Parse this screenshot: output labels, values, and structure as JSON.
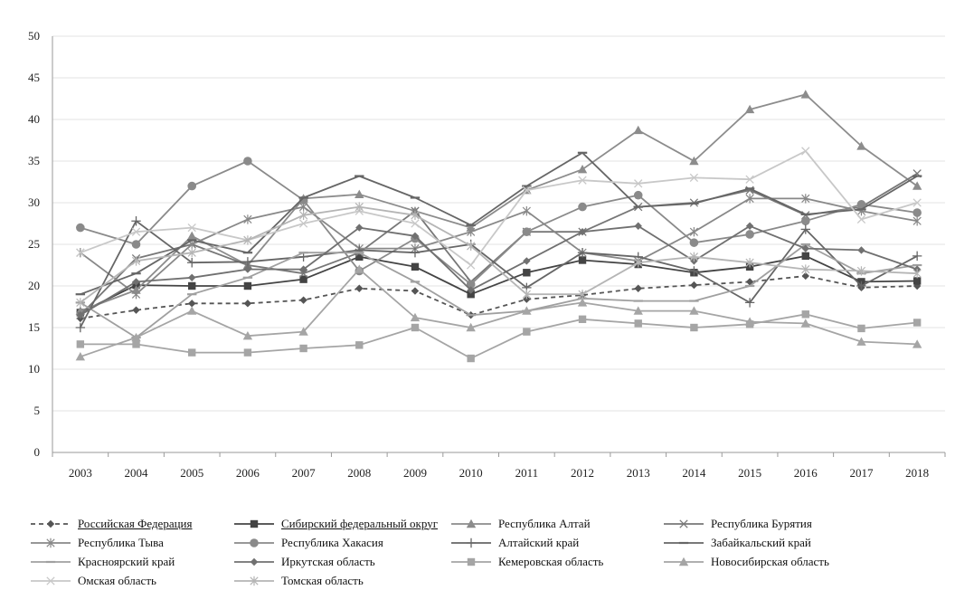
{
  "chart_data": {
    "type": "line",
    "x": [
      "2003",
      "2004",
      "2005",
      "2006",
      "2007",
      "2008",
      "2009",
      "2010",
      "2011",
      "2012",
      "2013",
      "2014",
      "2015",
      "2016",
      "2017",
      "2018"
    ],
    "ylim": [
      0,
      50
    ],
    "yticks": [
      "0",
      "5",
      "10",
      "15",
      "20",
      "25",
      "30",
      "35",
      "40",
      "45",
      "50"
    ],
    "grid": "horizontal",
    "legend_position": "bottom",
    "series": [
      {
        "name": "Российская Федерация",
        "color": "#555555",
        "marker": "diamond",
        "dash": true,
        "underline": true,
        "values": [
          16.1,
          17.1,
          17.9,
          17.9,
          18.3,
          19.7,
          19.4,
          16.5,
          18.4,
          18.9,
          19.7,
          20.1,
          20.5,
          21.2,
          19.8,
          20.0
        ]
      },
      {
        "name": "Сибирский федеральный  округ",
        "color": "#444444",
        "marker": "square",
        "dash": false,
        "underline": true,
        "values": [
          16.8,
          20.1,
          20.0,
          20.0,
          20.8,
          23.5,
          22.3,
          19.0,
          21.6,
          23.1,
          22.6,
          21.6,
          22.3,
          23.6,
          20.5,
          20.6
        ]
      },
      {
        "name": "Республика Алтай",
        "color": "#8c8c8c",
        "marker": "triangle",
        "dash": false,
        "values": [
          17.0,
          19.5,
          26.0,
          22.5,
          30.5,
          31.0,
          29.0,
          27.0,
          31.5,
          34.0,
          38.7,
          35.0,
          41.2,
          43.0,
          36.8,
          32.0
        ]
      },
      {
        "name": "Республика Бурятия",
        "color": "#777777",
        "marker": "x",
        "dash": false,
        "values": [
          16.5,
          23.3,
          25.0,
          22.5,
          21.5,
          24.0,
          29.0,
          20.5,
          26.5,
          26.5,
          29.5,
          30.0,
          31.5,
          28.5,
          29.5,
          33.5
        ]
      },
      {
        "name": "Республика Тыва",
        "color": "#888888",
        "marker": "asterisk",
        "dash": false,
        "values": [
          24.0,
          19.0,
          25.0,
          28.0,
          29.5,
          24.5,
          24.5,
          26.5,
          29.0,
          24.0,
          23.0,
          26.5,
          30.5,
          30.5,
          29.0,
          27.8
        ]
      },
      {
        "name": "Республика Хакасия",
        "color": "#8a8a8a",
        "marker": "circle",
        "dash": false,
        "values": [
          27.0,
          25.0,
          32.0,
          35.0,
          30.3,
          21.8,
          25.7,
          20.2,
          26.5,
          29.5,
          30.9,
          25.2,
          26.2,
          27.8,
          29.8,
          28.8
        ]
      },
      {
        "name": "Алтайский край",
        "color": "#666666",
        "marker": "plus",
        "dash": false,
        "values": [
          15.0,
          27.8,
          22.8,
          22.9,
          23.5,
          24.3,
          24.0,
          25.0,
          19.8,
          24.0,
          23.5,
          21.8,
          18.0,
          26.8,
          20.0,
          23.6
        ]
      },
      {
        "name": "Забайкальский край",
        "color": "#666666",
        "marker": "bar",
        "dash": false,
        "values": [
          19.0,
          21.5,
          25.5,
          24.0,
          30.6,
          33.2,
          30.6,
          27.3,
          32.0,
          36.0,
          29.5,
          29.9,
          31.7,
          28.6,
          29.2,
          33.2
        ]
      },
      {
        "name": "Красноярский край",
        "color": "#a0a0a0",
        "marker": "bar",
        "dash": false,
        "values": [
          18.0,
          13.8,
          19.0,
          21.0,
          24.0,
          24.0,
          20.5,
          16.5,
          17.0,
          18.5,
          18.2,
          18.2,
          20.0,
          25.0,
          21.5,
          22.5
        ]
      },
      {
        "name": "Иркутская область",
        "color": "#707070",
        "marker": "diamond",
        "dash": false,
        "values": [
          16.5,
          20.5,
          21.0,
          22.0,
          22.0,
          27.0,
          26.0,
          19.5,
          23.0,
          26.5,
          27.2,
          23.0,
          27.2,
          24.5,
          24.3,
          22.0
        ]
      },
      {
        "name": "Кемеровская область",
        "color": "#a5a5a5",
        "marker": "square",
        "dash": false,
        "values": [
          13.0,
          13.0,
          12.0,
          12.0,
          12.5,
          12.9,
          15.0,
          11.3,
          14.5,
          16.0,
          15.5,
          15.0,
          15.4,
          16.6,
          14.9,
          15.6
        ]
      },
      {
        "name": "Новосибирская область",
        "color": "#a5a5a5",
        "marker": "triangle",
        "dash": false,
        "values": [
          11.5,
          13.8,
          17.0,
          14.0,
          14.5,
          22.0,
          16.2,
          15.0,
          17.0,
          18.0,
          17.0,
          17.0,
          15.7,
          15.5,
          13.3,
          13.0
        ]
      },
      {
        "name": "Омская область",
        "color": "#c8c8c8",
        "marker": "x",
        "dash": false,
        "values": [
          24.0,
          26.5,
          27.0,
          25.5,
          27.5,
          29.0,
          27.5,
          22.5,
          31.5,
          32.7,
          32.3,
          33.0,
          32.8,
          36.2,
          28.0,
          30.0
        ]
      },
      {
        "name": "Томская область",
        "color": "#b5b5b5",
        "marker": "asterisk",
        "dash": false,
        "values": [
          18.0,
          23.0,
          24.0,
          25.5,
          28.5,
          29.5,
          28.5,
          24.8,
          19.0,
          19.0,
          22.8,
          23.5,
          22.8,
          22.0,
          21.8,
          21.5
        ]
      }
    ]
  }
}
